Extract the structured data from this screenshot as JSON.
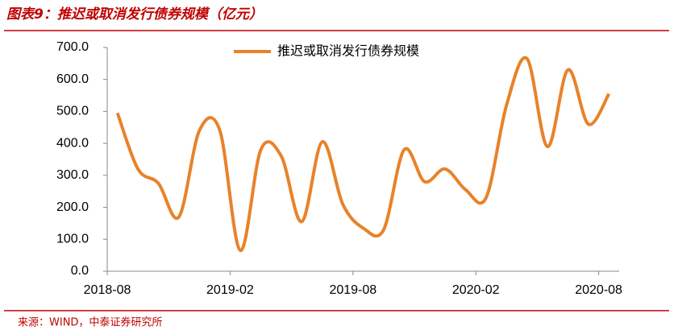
{
  "chart_data": {
    "type": "line",
    "title": "图表9：推迟或取消发行债券规模（亿元）",
    "source": "来源：WIND，中泰证券研究所",
    "categories": [
      "2018-08",
      null,
      null,
      null,
      null,
      null,
      "2019-02",
      null,
      null,
      null,
      null,
      null,
      "2019-08",
      null,
      null,
      null,
      null,
      null,
      "2020-02",
      null,
      null,
      null,
      null,
      null,
      "2020-08"
    ],
    "series": [
      {
        "name": "推迟或取消发行债券规模",
        "color": "#e8822a",
        "values": [
          495,
          320,
          275,
          170,
          440,
          440,
          65,
          380,
          360,
          155,
          405,
          210,
          135,
          130,
          380,
          280,
          320,
          255,
          230,
          520,
          665,
          390,
          630,
          460,
          555
        ]
      }
    ],
    "ylim": [
      0,
      700
    ],
    "yticks": [
      {
        "value": 0,
        "label": "0.0"
      },
      {
        "value": 100,
        "label": "100.0"
      },
      {
        "value": 200,
        "label": "200.0"
      },
      {
        "value": 300,
        "label": "300.0"
      },
      {
        "value": 400,
        "label": "400.0"
      },
      {
        "value": 500,
        "label": "500.0"
      },
      {
        "value": 600,
        "label": "600.0"
      },
      {
        "value": 700,
        "label": "700.0"
      }
    ],
    "legend": "top"
  }
}
